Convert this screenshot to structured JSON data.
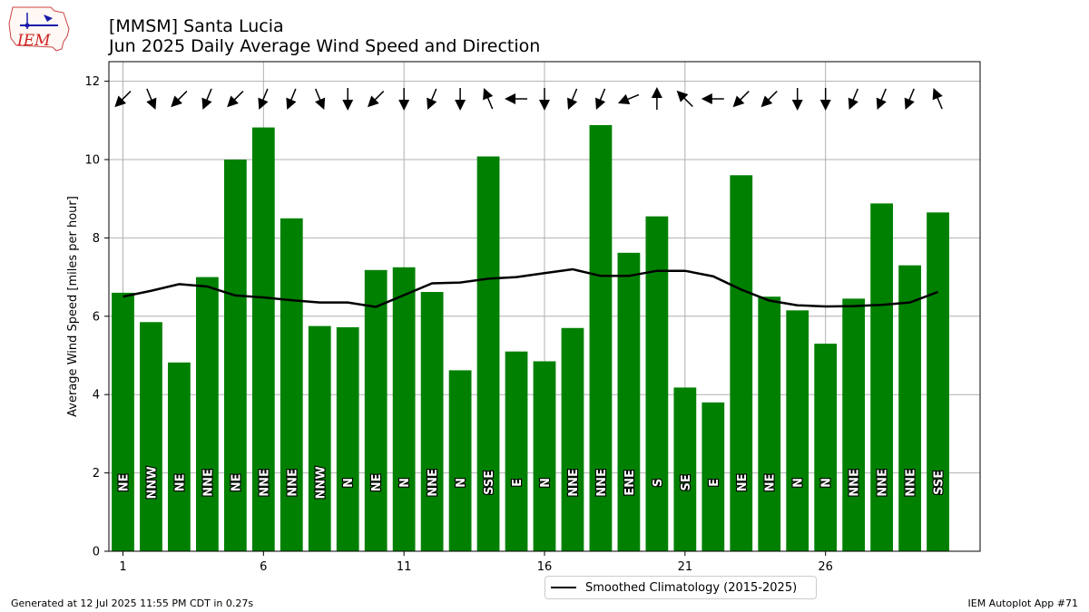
{
  "header": {
    "title_line1": "[MMSM] Santa Lucia",
    "title_line2": "Jun 2025 Daily Average Wind Speed and Direction"
  },
  "logo": {
    "text": "IEM"
  },
  "footer": {
    "left": "Generated at 12 Jul 2025 11:55 PM CDT in 0.27s",
    "right": "IEM Autoplot App #71"
  },
  "legend": {
    "label": "Smoothed Climatology (2015-2025)"
  },
  "colors": {
    "bar": "#008000",
    "line": "#000000",
    "grid": "#b0b0b0",
    "logo_red": "#cc2222",
    "logo_blue": "#1a1aaa"
  },
  "chart_data": {
    "type": "bar",
    "ylabel": "Average Wind Speed [miles per hour]",
    "xlabel": "",
    "ylim": [
      0,
      12.5
    ],
    "xlim": [
      0.5,
      31.5
    ],
    "xticks": [
      1,
      6,
      11,
      16,
      21,
      26
    ],
    "yticks": [
      0,
      2,
      4,
      6,
      8,
      10,
      12
    ],
    "grid": true,
    "legend_position": "bottom-center",
    "days": [
      1,
      2,
      3,
      4,
      5,
      6,
      7,
      8,
      9,
      10,
      11,
      12,
      13,
      14,
      15,
      16,
      17,
      18,
      19,
      20,
      21,
      22,
      23,
      24,
      25,
      26,
      27,
      28,
      29,
      30
    ],
    "values": [
      6.6,
      5.85,
      4.82,
      7.0,
      10.0,
      10.82,
      8.5,
      5.75,
      5.72,
      7.18,
      7.25,
      6.62,
      4.62,
      10.08,
      5.1,
      4.85,
      5.7,
      10.88,
      7.62,
      8.55,
      4.18,
      3.8,
      9.6,
      6.5,
      6.15,
      5.3,
      6.45,
      8.88,
      7.3,
      8.65
    ],
    "directions": [
      "NE",
      "NNW",
      "NE",
      "NNE",
      "NE",
      "NNE",
      "NNE",
      "NNW",
      "N",
      "NE",
      "N",
      "NNE",
      "N",
      "SSE",
      "E",
      "N",
      "NNE",
      "NNE",
      "ENE",
      "S",
      "SE",
      "E",
      "NE",
      "NE",
      "N",
      "N",
      "NNE",
      "NNE",
      "NNE",
      "SSE"
    ],
    "series": [
      {
        "name": "Smoothed Climatology (2015-2025)",
        "type": "line",
        "values": [
          6.5,
          6.65,
          6.82,
          6.76,
          6.53,
          6.48,
          6.41,
          6.35,
          6.35,
          6.24,
          6.54,
          6.84,
          6.86,
          6.96,
          7.0,
          7.1,
          7.2,
          7.03,
          7.03,
          7.16,
          7.16,
          7.02,
          6.68,
          6.4,
          6.28,
          6.25,
          6.26,
          6.29,
          6.35,
          6.62
        ]
      }
    ]
  }
}
